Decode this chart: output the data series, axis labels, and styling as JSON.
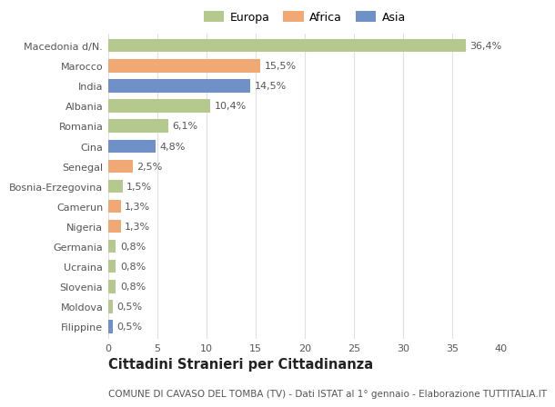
{
  "countries": [
    "Macedonia d/N.",
    "Marocco",
    "India",
    "Albania",
    "Romania",
    "Cina",
    "Senegal",
    "Bosnia-Erzegovina",
    "Camerun",
    "Nigeria",
    "Germania",
    "Ucraina",
    "Slovenia",
    "Moldova",
    "Filippine"
  ],
  "values": [
    36.4,
    15.5,
    14.5,
    10.4,
    6.1,
    4.8,
    2.5,
    1.5,
    1.3,
    1.3,
    0.8,
    0.8,
    0.8,
    0.5,
    0.5
  ],
  "labels": [
    "36,4%",
    "15,5%",
    "14,5%",
    "10,4%",
    "6,1%",
    "4,8%",
    "2,5%",
    "1,5%",
    "1,3%",
    "1,3%",
    "0,8%",
    "0,8%",
    "0,8%",
    "0,5%",
    "0,5%"
  ],
  "continents": [
    "Europa",
    "Africa",
    "Asia",
    "Europa",
    "Europa",
    "Asia",
    "Africa",
    "Europa",
    "Africa",
    "Africa",
    "Europa",
    "Europa",
    "Europa",
    "Europa",
    "Asia"
  ],
  "colors": {
    "Europa": "#b5c98e",
    "Africa": "#f0a875",
    "Asia": "#7090c8"
  },
  "title": "Cittadini Stranieri per Cittadinanza",
  "subtitle": "COMUNE DI CAVASO DEL TOMBA (TV) - Dati ISTAT al 1° gennaio - Elaborazione TUTTITALIA.IT",
  "xlim": [
    0,
    40
  ],
  "xticks": [
    0,
    5,
    10,
    15,
    20,
    25,
    30,
    35,
    40
  ],
  "bg_color": "#ffffff",
  "grid_color": "#e0e0e0",
  "bar_height": 0.65,
  "label_fontsize": 8.0,
  "tick_fontsize": 8.0,
  "title_fontsize": 10.5,
  "subtitle_fontsize": 7.5
}
